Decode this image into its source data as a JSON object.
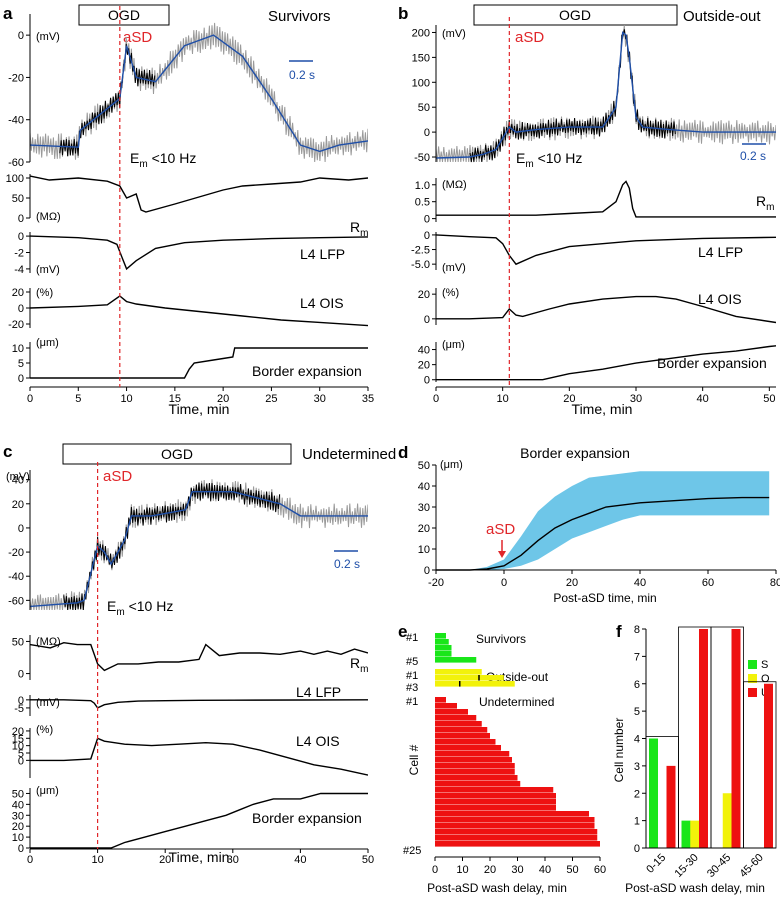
{
  "colors": {
    "trace": "#000000",
    "gray": "#9a9a9a",
    "blue": "#1f4fa8",
    "red": "#e0262a",
    "band": "#6ec6e8",
    "green": "#19e619",
    "yellow": "#f2f20a",
    "bar_red": "#ee1111"
  },
  "panels": {
    "a": {
      "letter": "a",
      "title": "Survivors",
      "ogd": "OGD",
      "asd": "aSD",
      "em_label": "E",
      "em_sub": "m",
      "em_rest": " <10 Hz",
      "scale_bar": "0.2 s",
      "vm_unit": "(mV)",
      "rm_unit": "(MΩ)",
      "lfp_unit": "(mV)",
      "ois_unit": "(%)",
      "border_unit": "(μm)",
      "rm_label": "R",
      "rm_sub": "m",
      "lfp_label": "L4 LFP",
      "ois_label": "L4 OIS",
      "border_label": "Border expansion",
      "xlabel": "Time, min"
    },
    "b": {
      "letter": "b",
      "title": "Outside-out",
      "ogd": "OGD",
      "asd": "aSD",
      "em_label": "E",
      "em_sub": "m",
      "em_rest": " <10 Hz",
      "scale_bar": "0.2 s",
      "vm_unit": "(mV)",
      "rm_unit": "(MΩ)",
      "lfp_unit": "(mV)",
      "ois_unit": "(%)",
      "border_unit": "(μm)",
      "rm_label": "R",
      "rm_sub": "m",
      "lfp_label": "L4 LFP",
      "ois_label": "L4 OIS",
      "border_label": "Border expansion",
      "xlabel": "Time, min"
    },
    "c": {
      "letter": "c",
      "title": "Undetermined",
      "ogd": "OGD",
      "asd": "aSD",
      "em_label": "E",
      "em_sub": "m",
      "em_rest": " <10 Hz",
      "scale_bar": "0.2 s",
      "vm_unit": "(mV)",
      "rm_unit": "(MΩ)",
      "lfp_unit": "(mV)",
      "ois_unit": "(%)",
      "border_unit": "(μm)",
      "rm_label": "R",
      "rm_sub": "m",
      "lfp_label": "L4 LFP",
      "ois_label": "L4 OIS",
      "border_label": "Border expansion",
      "xlabel": "Time, min"
    },
    "d": {
      "letter": "d",
      "title": "Border expansion",
      "unit": "(μm)",
      "asd": "aSD",
      "xlabel": "Post-aSD time, min"
    },
    "e": {
      "letter": "e",
      "xlabel": "Post-aSD wash delay, min",
      "ylabel": "Cell #",
      "group_survivors": "Survivors",
      "group_outside": "Outside-out",
      "group_undetermined": "Undetermined",
      "cell_1s": "#1",
      "cell_5": "#5",
      "cell_1o": "#1",
      "cell_3": "#3",
      "cell_1u": "#1",
      "cell_25": "#25"
    },
    "f": {
      "letter": "f",
      "xlabel": "Post-aSD wash delay, min",
      "ylabel": "Cell number",
      "legend_s": "S",
      "legend_o": "O",
      "legend_u": "U"
    }
  },
  "chart_data": [
    {
      "id": "a",
      "type": "line",
      "title": "Survivors",
      "x_range": [
        0,
        35
      ],
      "x_ticks": [
        "0",
        "5",
        "10",
        "15",
        "20",
        "25",
        "30",
        "35"
      ],
      "asd_time": 9.3,
      "ogd_window": [
        3,
        13
      ],
      "tracks": [
        {
          "name": "Vm",
          "unit": "mV",
          "y_ticks": [
            "0",
            "-20",
            "-40",
            "-60"
          ],
          "y_range": [
            -60,
            10
          ],
          "x": [
            0,
            5,
            5.2,
            9.3,
            10,
            11,
            13,
            16,
            19,
            22,
            25,
            28,
            30,
            32,
            35
          ],
          "y": [
            -52,
            -53,
            -45,
            -30,
            -5,
            -20,
            -22,
            -5,
            0,
            -10,
            -30,
            -52,
            -55,
            -52,
            -50
          ]
        },
        {
          "name": "Rm",
          "unit": "MΩ",
          "y_ticks": [
            "100",
            "50",
            "0"
          ],
          "y_range": [
            0,
            110
          ],
          "x": [
            0,
            2,
            5,
            8,
            9.3,
            10,
            11,
            11.5,
            12,
            15,
            20,
            22,
            25,
            28,
            30,
            33,
            35
          ],
          "y": [
            105,
            95,
            100,
            92,
            80,
            50,
            60,
            20,
            15,
            35,
            70,
            80,
            85,
            90,
            100,
            95,
            100
          ]
        },
        {
          "name": "L4 LFP",
          "unit": "mV",
          "y_ticks": [
            "0",
            "-2",
            "-4"
          ],
          "y_range": [
            -4.5,
            0.5
          ],
          "x": [
            0,
            5,
            8,
            9,
            9.5,
            10,
            11,
            13,
            16,
            20,
            25,
            30,
            35
          ],
          "y": [
            0,
            -0.2,
            -0.5,
            -1,
            -2.5,
            -4,
            -3,
            -1.5,
            -0.8,
            -0.5,
            -0.3,
            -0.2,
            -0.1
          ]
        },
        {
          "name": "L4 OIS",
          "unit": "%",
          "y_ticks": [
            "20",
            "0",
            "-20"
          ],
          "y_range": [
            -25,
            25
          ],
          "x": [
            0,
            5,
            8,
            9.3,
            10,
            11,
            14,
            18,
            22,
            26,
            30,
            35
          ],
          "y": [
            0,
            2,
            4,
            15,
            8,
            5,
            0,
            -5,
            -10,
            -15,
            -18,
            -22
          ]
        },
        {
          "name": "Border expansion",
          "unit": "μm",
          "y_ticks": [
            "10",
            "5",
            "0"
          ],
          "y_range": [
            0,
            12
          ],
          "x": [
            0,
            16,
            16.5,
            17,
            19,
            20,
            21,
            21.2,
            35
          ],
          "y": [
            0,
            0,
            3,
            5,
            6,
            6.5,
            7,
            10,
            10
          ]
        }
      ]
    },
    {
      "id": "b",
      "type": "line",
      "title": "Outside-out",
      "x_range": [
        0,
        51
      ],
      "x_ticks": [
        "0",
        "10",
        "20",
        "30",
        "40",
        "50"
      ],
      "asd_time": 11,
      "ogd_window": [
        5,
        36
      ],
      "tracks": [
        {
          "name": "Vm",
          "unit": "mV",
          "y_ticks": [
            "200",
            "150",
            "100",
            "50",
            "0",
            "-50"
          ],
          "y_range": [
            -60,
            215
          ],
          "x": [
            0,
            5,
            7,
            9,
            11,
            12,
            15,
            20,
            25,
            27,
            28,
            28.5,
            29,
            30,
            31,
            35,
            40,
            45,
            51
          ],
          "y": [
            -52,
            -50,
            -45,
            -35,
            10,
            0,
            5,
            10,
            10,
            50,
            200,
            195,
            150,
            30,
            10,
            5,
            0,
            0,
            0
          ]
        },
        {
          "name": "Rm",
          "unit": "MΩ",
          "y_ticks": [
            "1.0",
            "0.5",
            "0"
          ],
          "y_range": [
            -0.1,
            1.2
          ],
          "x": [
            0,
            10,
            15,
            20,
            25,
            27,
            28,
            28.5,
            29,
            29.5,
            30,
            35,
            40,
            45,
            51
          ],
          "y": [
            0.1,
            0.1,
            0.1,
            0.15,
            0.2,
            0.5,
            1.0,
            1.1,
            0.9,
            0.3,
            0.05,
            0.05,
            0.05,
            0.05,
            0.05
          ]
        },
        {
          "name": "L4 LFP",
          "unit": "mV",
          "y_ticks": [
            "0",
            "-2.5",
            "-5.0"
          ],
          "y_range": [
            -6,
            0.5
          ],
          "x": [
            0,
            5,
            9,
            10,
            11,
            12,
            15,
            20,
            30,
            40,
            51
          ],
          "y": [
            0,
            -0.3,
            -0.5,
            -1.5,
            -3.5,
            -5,
            -3.5,
            -2,
            -1,
            -0.6,
            -0.4
          ]
        },
        {
          "name": "L4 OIS",
          "unit": "%",
          "y_ticks": [
            "20",
            "0"
          ],
          "y_range": [
            -5,
            25
          ],
          "x": [
            0,
            5,
            10,
            11,
            12,
            13,
            17,
            20,
            25,
            30,
            33,
            36,
            40,
            45,
            51
          ],
          "y": [
            0,
            0,
            1,
            8,
            3,
            2,
            8,
            12,
            16,
            18,
            18,
            16,
            10,
            2,
            -3
          ]
        },
        {
          "name": "Border expansion",
          "unit": "μm",
          "y_ticks": [
            "40",
            "20",
            "0"
          ],
          "y_range": [
            -3,
            50
          ],
          "x": [
            0,
            16,
            17,
            20,
            25,
            30,
            35,
            40,
            45,
            50,
            51
          ],
          "y": [
            0,
            0,
            2,
            8,
            14,
            22,
            28,
            34,
            38,
            44,
            45
          ]
        }
      ]
    },
    {
      "id": "c",
      "type": "line",
      "title": "Undetermined",
      "x_range": [
        0,
        50
      ],
      "x_ticks": [
        "0",
        "10",
        "20",
        "30",
        "40",
        "50"
      ],
      "asd_time": 10,
      "ogd_window": [
        5,
        37
      ],
      "tracks": [
        {
          "name": "Vm",
          "unit": "mV",
          "y_ticks": [
            "40",
            "20",
            "0",
            "-20",
            "-40",
            "-60"
          ],
          "y_range": [
            -68,
            48
          ],
          "x": [
            0,
            7,
            8,
            10,
            11,
            12,
            13,
            14,
            15,
            18,
            23,
            24,
            30,
            37,
            40,
            45,
            50
          ],
          "y": [
            -65,
            -62,
            -60,
            -15,
            -20,
            -30,
            -20,
            -10,
            10,
            10,
            15,
            30,
            30,
            20,
            10,
            10,
            10
          ]
        },
        {
          "name": "Rm",
          "unit": "MΩ",
          "y_ticks": [
            "50",
            "0"
          ],
          "y_range": [
            -10,
            60
          ],
          "x": [
            0,
            3,
            5,
            7,
            9,
            10,
            11,
            13,
            16,
            19,
            22,
            25,
            26,
            28,
            31,
            34,
            37,
            40,
            42,
            44,
            46,
            48,
            50
          ],
          "y": [
            45,
            40,
            48,
            45,
            45,
            15,
            5,
            15,
            15,
            18,
            18,
            22,
            45,
            28,
            32,
            32,
            30,
            35,
            30,
            35,
            30,
            38,
            32
          ]
        },
        {
          "name": "L4 LFP",
          "unit": "mV",
          "y_ticks": [
            "0",
            "-5"
          ],
          "y_range": [
            -10,
            3
          ],
          "x": [
            0,
            5,
            9,
            9.5,
            10,
            11,
            13,
            16,
            20,
            25,
            30,
            40,
            50
          ],
          "y": [
            0,
            0,
            -0.5,
            -2,
            -5,
            -3,
            -1.5,
            -0.8,
            -0.5,
            -0.3,
            -0.2,
            -0.1,
            0
          ]
        },
        {
          "name": "L4 OIS",
          "unit": "%",
          "y_ticks": [
            "20",
            "15",
            "10",
            "5",
            "0"
          ],
          "y_range": [
            -12,
            22
          ],
          "x": [
            0,
            5,
            9,
            10,
            11,
            14,
            18,
            22,
            26,
            30,
            34,
            38,
            42,
            46,
            50
          ],
          "y": [
            0,
            0,
            1,
            15,
            13,
            11,
            10,
            11,
            12,
            11,
            7,
            2,
            -3,
            -6,
            -10
          ]
        },
        {
          "name": "Border expansion",
          "unit": "μm",
          "y_ticks": [
            "50",
            "40",
            "30",
            "20",
            "10",
            "0"
          ],
          "y_range": [
            0,
            55
          ],
          "x": [
            0,
            12,
            14,
            17,
            20,
            23,
            26,
            29,
            31,
            33,
            36,
            40,
            43,
            46,
            50
          ],
          "y": [
            0,
            0,
            5,
            10,
            15,
            20,
            25,
            30,
            35,
            40,
            45,
            45,
            50,
            50,
            50
          ]
        }
      ]
    },
    {
      "id": "d",
      "type": "line",
      "title": "Border expansion",
      "xlabel": "Post-aSD time, min",
      "ylabel": "(μm)",
      "xlim": [
        -20,
        80
      ],
      "ylim": [
        0,
        50
      ],
      "x_ticks": [
        "-20",
        "0",
        "20",
        "40",
        "60",
        "80"
      ],
      "y_ticks": [
        "50",
        "40",
        "30",
        "20",
        "10",
        "0"
      ],
      "x": [
        -20,
        -10,
        -5,
        0,
        5,
        10,
        15,
        20,
        25,
        30,
        35,
        40,
        50,
        60,
        70,
        78
      ],
      "mean": [
        0,
        0,
        0.5,
        2,
        7,
        14,
        20,
        24,
        27,
        30,
        31,
        32,
        33,
        34,
        34.5,
        34.5
      ],
      "upper": [
        0,
        0,
        1.5,
        5,
        16,
        28,
        35,
        40,
        44,
        45,
        46,
        47,
        47,
        47,
        47,
        47
      ],
      "lower": [
        0,
        0,
        0,
        0.5,
        2,
        5,
        10,
        15,
        18,
        21,
        24,
        26,
        26,
        26,
        26,
        26
      ]
    },
    {
      "id": "e",
      "type": "bar",
      "orientation": "horizontal",
      "xlim": [
        0,
        60
      ],
      "x_ticks": [
        "0",
        "10",
        "20",
        "30",
        "40",
        "50",
        "60"
      ],
      "survivors": [
        4,
        5,
        6,
        6,
        15
      ],
      "outside_out": [
        17,
        25,
        29
      ],
      "outside_out_marks": [
        null,
        16,
        9
      ],
      "undetermined": [
        4,
        8,
        12,
        15,
        17,
        19,
        20,
        22,
        24,
        27,
        28,
        29,
        29,
        30,
        31,
        43,
        44,
        44,
        44,
        56,
        58,
        58,
        59,
        59,
        60
      ]
    },
    {
      "id": "f",
      "type": "bar",
      "categories": [
        "0-15",
        "15-30",
        "30-45",
        "45-60"
      ],
      "ylim": [
        0,
        8
      ],
      "y_ticks": [
        "0",
        "1",
        "2",
        "3",
        "4",
        "5",
        "6",
        "7",
        "8"
      ],
      "series": [
        {
          "name": "S",
          "values": [
            4,
            1,
            0,
            0
          ]
        },
        {
          "name": "O",
          "values": [
            0,
            1,
            2,
            0
          ]
        },
        {
          "name": "U",
          "values": [
            3,
            8,
            8,
            6
          ]
        }
      ]
    }
  ]
}
